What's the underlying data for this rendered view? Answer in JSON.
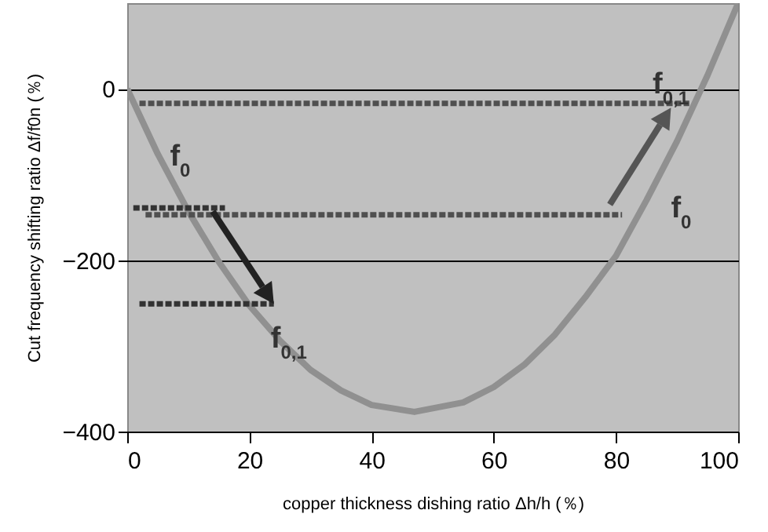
{
  "chart_data": {
    "type": "line",
    "xlabel": "copper thickness dishing ratio  Δh/h (％)",
    "ylabel": "Cut frequency shifting ratio  Δf/f0n (％)",
    "xlim": [
      0,
      100
    ],
    "ylim": [
      -400,
      100
    ],
    "xticks": [
      0,
      20,
      40,
      60,
      80,
      100
    ],
    "yticks": [
      -400,
      -200,
      0
    ],
    "grid": "y",
    "marker": "none",
    "series": [
      {
        "color": "#909090",
        "line_style": "solid",
        "x": [
          0,
          5,
          10,
          15,
          20,
          25,
          30,
          35,
          40,
          47,
          55,
          60,
          65,
          70,
          75,
          80,
          85,
          90,
          95,
          100
        ],
        "values": [
          0,
          -76,
          -143,
          -202,
          -253,
          -294,
          -328,
          -352,
          -369,
          -377,
          -366,
          -348,
          -322,
          -287,
          -243,
          -195,
          -130,
          -61,
          16,
          100
        ]
      },
      {
        "color": "#505050",
        "line_style": "dashed",
        "x": [
          2,
          92
        ],
        "values": [
          -17,
          -17
        ]
      },
      {
        "color": "#505050",
        "line_style": "dashed",
        "x": [
          3,
          81
        ],
        "values": [
          -147,
          -147
        ]
      },
      {
        "color": "#333333",
        "line_style": "dashed",
        "x": [
          1,
          16
        ],
        "values": [
          -139,
          -139
        ]
      },
      {
        "color": "#333333",
        "line_style": "dashed",
        "x": [
          2,
          24
        ],
        "values": [
          -251,
          -251
        ]
      }
    ],
    "annotations": [
      "f$_{0}$",
      {
        "text": "f$_{0,1}$",
        "x": 24,
        "y": -251
      },
      "f$_{0,1}$",
      "f$_{0}$"
    ]
  }
}
